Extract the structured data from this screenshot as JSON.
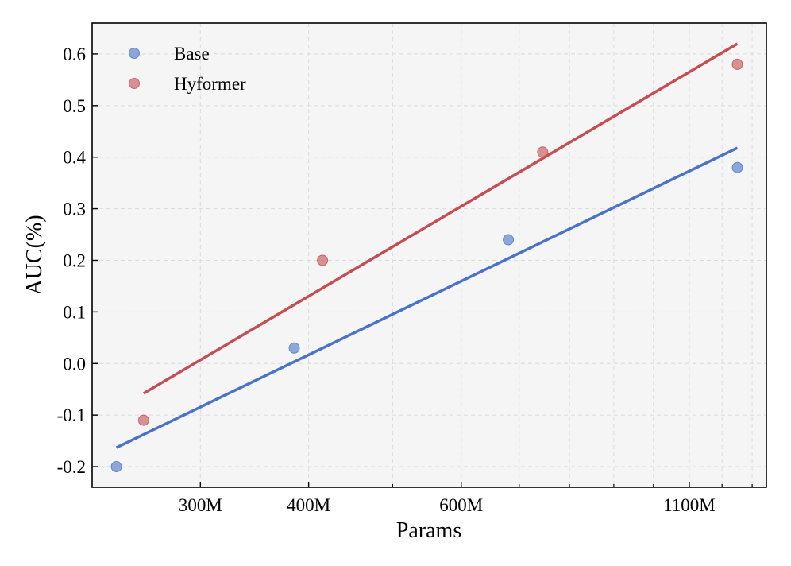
{
  "chart_data": {
    "type": "scatter",
    "xlabel": "Params",
    "ylabel": "AUC(%)",
    "x_scale": "log",
    "xlim": [
      225,
      1350
    ],
    "ylim": [
      -0.24,
      0.66
    ],
    "x_ticks": [
      {
        "value": 300,
        "label": "300M"
      },
      {
        "value": 400,
        "label": "400M"
      },
      {
        "value": 600,
        "label": "600M"
      },
      {
        "value": 1100,
        "label": "1100M"
      }
    ],
    "x_minor_ticks": [
      500,
      700,
      800,
      900,
      1000,
      1200,
      1300
    ],
    "y_ticks": [
      -0.2,
      -0.1,
      0.0,
      0.1,
      0.2,
      0.3,
      0.4,
      0.5,
      0.6
    ],
    "y_tick_labels": [
      "-0.2",
      "-0.1",
      "0.0",
      "0.1",
      "0.2",
      "0.3",
      "0.4",
      "0.5",
      "0.6"
    ],
    "grid": true,
    "legend_position": "top-left",
    "series": [
      {
        "name": "Base",
        "color": "#4a73c8",
        "points": [
          {
            "x": 240,
            "y": -0.2
          },
          {
            "x": 385,
            "y": 0.03
          },
          {
            "x": 680,
            "y": 0.24
          },
          {
            "x": 1250,
            "y": 0.38
          }
        ],
        "trend": [
          {
            "x": 240,
            "y": -0.163
          },
          {
            "x": 1250,
            "y": 0.418
          }
        ]
      },
      {
        "name": "Hyformer",
        "color": "#c44e52",
        "points": [
          {
            "x": 258,
            "y": -0.11
          },
          {
            "x": 415,
            "y": 0.2
          },
          {
            "x": 745,
            "y": 0.41
          },
          {
            "x": 1250,
            "y": 0.58
          }
        ],
        "trend": [
          {
            "x": 258,
            "y": -0.058
          },
          {
            "x": 1250,
            "y": 0.62
          }
        ]
      }
    ]
  }
}
